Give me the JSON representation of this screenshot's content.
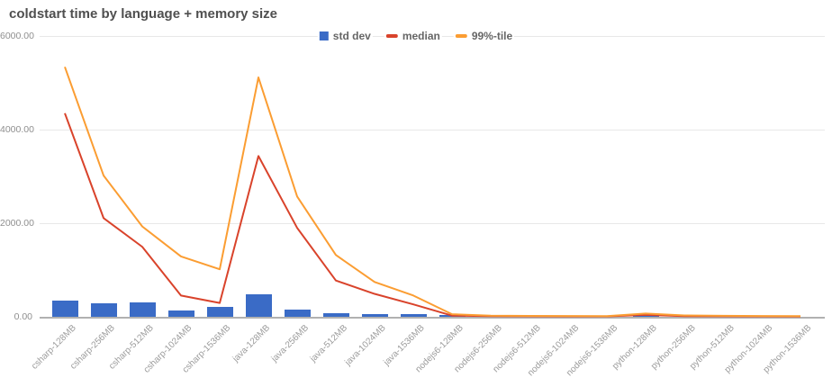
{
  "header": {
    "title": "coldstart time by language + memory size"
  },
  "chart_data": {
    "type": "combo",
    "title": "coldstart time by language + memory size",
    "legend_position": "top",
    "grid": true,
    "ylim": [
      0,
      6000
    ],
    "y_ticks": [
      {
        "label": "0.00",
        "value": 0
      },
      {
        "label": "2000.00",
        "value": 2000
      },
      {
        "label": "4000.00",
        "value": 4000
      },
      {
        "label": "6000.00",
        "value": 6000
      }
    ],
    "categories": [
      "csharp-128MB",
      "csharp-256MB",
      "csharp-512MB",
      "csharp-1024MB",
      "csharp-1536MB",
      "java-128MB",
      "java-256MB",
      "java-512MB",
      "java-1024MB",
      "java-1536MB",
      "nodejs6-128MB",
      "nodejs6-256MB",
      "nodejs6-512MB",
      "nodejs6-1024MB",
      "nodejs6-1536MB",
      "python-128MB",
      "python-256MB",
      "python-512MB",
      "python-1024MB",
      "python-1536MB"
    ],
    "series": [
      {
        "name": "std dev",
        "type": "bar",
        "color": "#3a6bc6",
        "values": [
          340,
          290,
          300,
          140,
          205,
          475,
          155,
          75,
          60,
          60,
          35,
          8,
          6,
          5,
          5,
          10,
          6,
          5,
          5,
          4
        ]
      },
      {
        "name": "median",
        "type": "line",
        "color": "#d9432b",
        "values": [
          4350,
          2110,
          1495,
          455,
          295,
          3435,
          1900,
          775,
          490,
          265,
          25,
          15,
          12,
          10,
          10,
          40,
          15,
          12,
          10,
          8
        ]
      },
      {
        "name": "99%-tile",
        "type": "line",
        "color": "#fb9d32",
        "values": [
          5340,
          3020,
          1930,
          1290,
          1015,
          5115,
          2570,
          1320,
          745,
          455,
          55,
          25,
          20,
          18,
          15,
          70,
          30,
          22,
          18,
          14
        ]
      }
    ]
  }
}
